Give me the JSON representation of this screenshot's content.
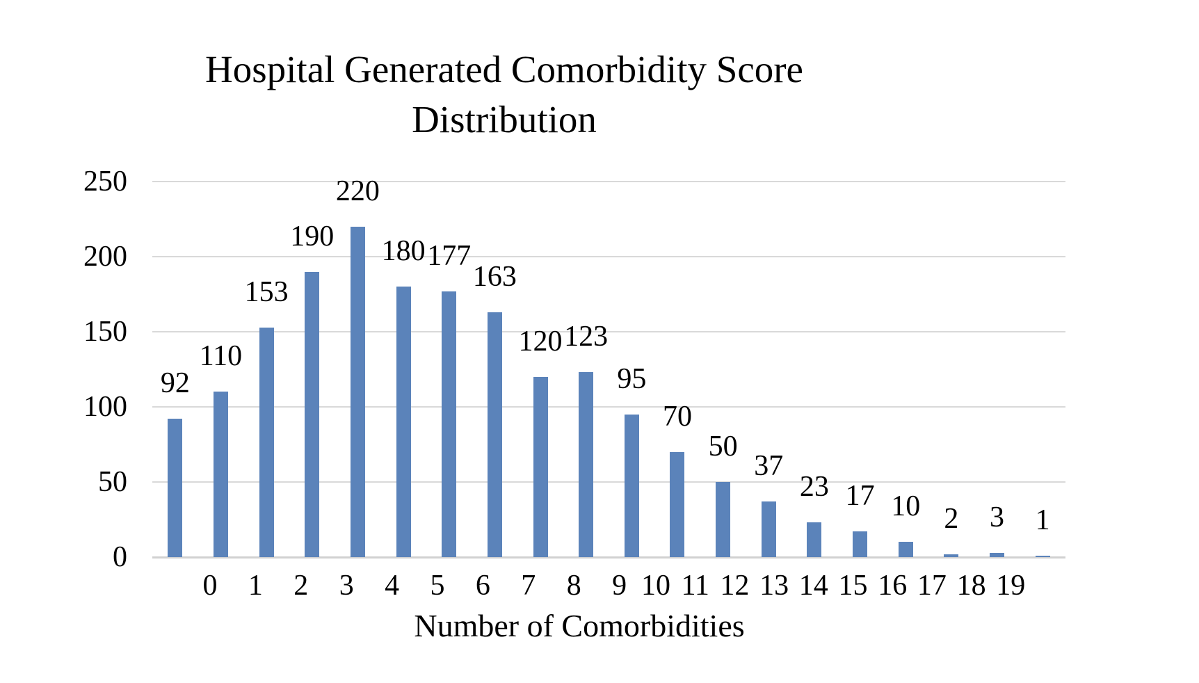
{
  "title": {
    "line1": "Hospital Generated Comorbidity Score",
    "line2": "Distribution"
  },
  "chart_data": {
    "type": "bar",
    "title": "Hospital Generated Comorbidity Score Distribution",
    "categories": [
      "0",
      "1",
      "2",
      "3",
      "4",
      "5",
      "6",
      "7",
      "8",
      "9",
      "10",
      "11",
      "12",
      "13",
      "14",
      "15",
      "16",
      "17",
      "18",
      "19"
    ],
    "values": [
      92,
      110,
      153,
      190,
      220,
      180,
      177,
      163,
      120,
      123,
      95,
      70,
      50,
      37,
      23,
      17,
      10,
      2,
      3,
      1
    ],
    "data_labels": [
      92,
      110,
      153,
      190,
      220,
      180,
      177,
      163,
      120,
      123,
      95,
      70,
      50,
      37,
      23,
      17,
      10,
      2,
      3,
      1
    ],
    "xlabel": "Number of Comorbidities",
    "ylabel": "",
    "ylim": [
      0,
      250
    ],
    "yticks": [
      0,
      50,
      100,
      150,
      200,
      250
    ],
    "grid": true,
    "legend": false,
    "bar_color": "#5b83ba",
    "gridline_color": "#d9d9d9",
    "text_color": "#000000"
  }
}
